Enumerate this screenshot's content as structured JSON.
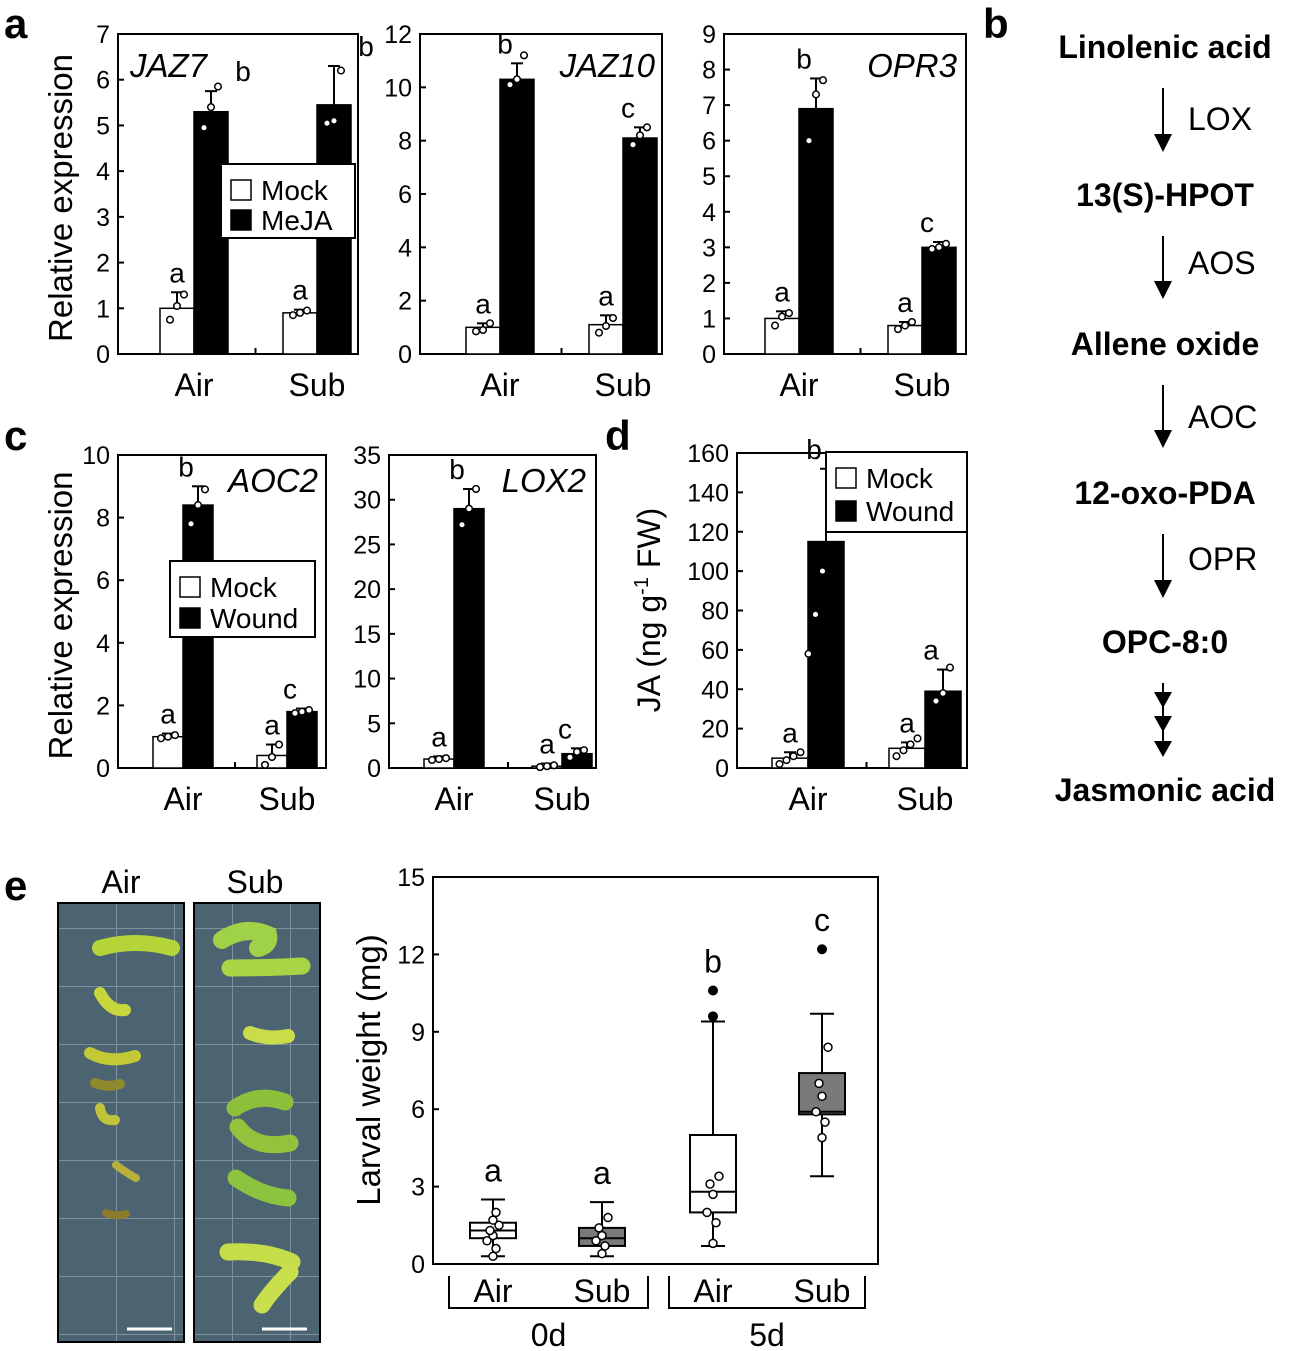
{
  "panels": {
    "a": "a",
    "b": "b",
    "c": "c",
    "d": "d",
    "e": "e"
  },
  "colors": {
    "mock": "#ffffff",
    "treated": "#000000",
    "sub_box": "#7a7a7a",
    "outline": "#000000"
  },
  "chart_data": [
    {
      "id": "jaz7",
      "type": "bar",
      "title": "JAZ7",
      "ylabel": "Relative expression",
      "categories": [
        "Air",
        "Sub"
      ],
      "ylim": [
        0,
        7
      ],
      "yticks": [
        0,
        1,
        2,
        3,
        4,
        5,
        6,
        7
      ],
      "series": [
        {
          "name": "Mock",
          "values": [
            1.0,
            0.9
          ],
          "errors": [
            0.35,
            0.07
          ],
          "letters": [
            "a",
            "a"
          ],
          "points": [
            [
              0.75,
              1.05,
              1.3
            ],
            [
              0.85,
              0.9,
              0.95
            ]
          ]
        },
        {
          "name": "MeJA",
          "values": [
            5.3,
            5.45
          ],
          "errors": [
            0.45,
            0.85
          ],
          "letters": [
            "b",
            "b"
          ],
          "points": [
            [
              4.95,
              5.4,
              5.85
            ],
            [
              5.05,
              5.1,
              6.2
            ]
          ]
        }
      ],
      "legend": [
        "Mock",
        "MeJA"
      ]
    },
    {
      "id": "jaz10",
      "type": "bar",
      "title": "JAZ10",
      "categories": [
        "Air",
        "Sub"
      ],
      "ylim": [
        0,
        12
      ],
      "yticks": [
        0,
        2,
        4,
        6,
        8,
        10,
        12
      ],
      "series": [
        {
          "name": "Mock",
          "values": [
            1.0,
            1.1
          ],
          "errors": [
            0.15,
            0.35
          ],
          "letters": [
            "a",
            "a"
          ],
          "points": [
            [
              0.85,
              0.9,
              1.15
            ],
            [
              0.8,
              1.05,
              1.35
            ]
          ]
        },
        {
          "name": "MeJA",
          "values": [
            10.3,
            8.1
          ],
          "errors": [
            0.6,
            0.4
          ],
          "letters": [
            "b",
            "c"
          ],
          "points": [
            [
              10.1,
              10.3,
              11.2
            ],
            [
              7.85,
              8.2,
              8.5
            ]
          ]
        }
      ]
    },
    {
      "id": "opr3",
      "type": "bar",
      "title": "OPR3",
      "categories": [
        "Air",
        "Sub"
      ],
      "ylim": [
        0,
        9
      ],
      "yticks": [
        0,
        1,
        2,
        3,
        4,
        5,
        6,
        7,
        8,
        9
      ],
      "series": [
        {
          "name": "Mock",
          "values": [
            1.0,
            0.8
          ],
          "errors": [
            0.2,
            0.1
          ],
          "letters": [
            "a",
            "a"
          ],
          "points": [
            [
              0.8,
              1.05,
              1.15
            ],
            [
              0.7,
              0.8,
              0.9
            ]
          ]
        },
        {
          "name": "MeJA",
          "values": [
            6.9,
            3.0
          ],
          "errors": [
            0.85,
            0.15
          ],
          "letters": [
            "b",
            "c"
          ],
          "points": [
            [
              6.0,
              7.3,
              7.7
            ],
            [
              2.95,
              3.0,
              3.1
            ]
          ]
        }
      ]
    },
    {
      "id": "aoc2",
      "type": "bar",
      "title": "AOC2",
      "ylabel": "Relative expression",
      "categories": [
        "Air",
        "Sub"
      ],
      "ylim": [
        0,
        10
      ],
      "yticks": [
        0,
        2,
        4,
        6,
        8,
        10
      ],
      "series": [
        {
          "name": "Mock",
          "values": [
            1.0,
            0.4
          ],
          "errors": [
            0.1,
            0.35
          ],
          "letters": [
            "a",
            "a"
          ],
          "points": [
            [
              0.95,
              1.0,
              1.05
            ],
            [
              0.1,
              0.35,
              0.75
            ]
          ]
        },
        {
          "name": "Wound",
          "values": [
            8.4,
            1.8
          ],
          "errors": [
            0.6,
            0.1
          ],
          "letters": [
            "b",
            "c"
          ],
          "points": [
            [
              7.8,
              8.4,
              8.9
            ],
            [
              1.75,
              1.8,
              1.85
            ]
          ]
        }
      ],
      "legend": [
        "Mock",
        "Wound"
      ]
    },
    {
      "id": "lox2",
      "type": "bar",
      "title": "LOX2",
      "categories": [
        "Air",
        "Sub"
      ],
      "ylim": [
        0,
        35
      ],
      "yticks": [
        0,
        5,
        10,
        15,
        20,
        25,
        30,
        35
      ],
      "series": [
        {
          "name": "Mock",
          "values": [
            1.0,
            0.2
          ],
          "errors": [
            0.3,
            0.3
          ],
          "letters": [
            "a",
            "a"
          ],
          "points": [
            [
              0.9,
              1.0,
              1.1
            ],
            [
              0.1,
              0.2,
              0.3
            ]
          ]
        },
        {
          "name": "Wound",
          "values": [
            29.0,
            1.6
          ],
          "errors": [
            2.2,
            0.6
          ],
          "letters": [
            "b",
            "c"
          ],
          "points": [
            [
              27.2,
              29.0,
              31.2
            ],
            [
              1.2,
              1.8,
              2.0
            ]
          ]
        }
      ]
    },
    {
      "id": "ja",
      "type": "bar",
      "ylabel_parts": [
        "JA (ng g",
        "-1",
        " FW)"
      ],
      "categories": [
        "Air",
        "Sub"
      ],
      "ylim": [
        0,
        160
      ],
      "yticks": [
        0,
        20,
        40,
        60,
        80,
        100,
        120,
        140,
        160
      ],
      "series": [
        {
          "name": "Mock",
          "values": [
            5.0,
            10.0
          ],
          "errors": [
            3.0,
            3.0
          ],
          "letters": [
            "a",
            "a"
          ],
          "points": [
            [
              2,
              4,
              6,
              8
            ],
            [
              6,
              9,
              12,
              15
            ]
          ]
        },
        {
          "name": "Wound",
          "values": [
            115.0,
            39.0
          ],
          "errors": [
            37.0,
            11.0
          ],
          "letters": [
            "b",
            "a"
          ],
          "points": [
            [
              58,
              78,
              100,
              125,
              145,
              153
            ],
            [
              34,
              38,
              51
            ]
          ]
        }
      ],
      "legend": [
        "Mock",
        "Wound"
      ]
    },
    {
      "id": "larval",
      "type": "box",
      "ylabel": "Larval weight (mg)",
      "ylim": [
        0,
        15
      ],
      "yticks": [
        0,
        3,
        6,
        9,
        12,
        15
      ],
      "groups": [
        {
          "label": "Air",
          "day": "0d",
          "q1": 1.0,
          "median": 1.3,
          "q3": 1.6,
          "whisker_low": 0.3,
          "whisker_high": 2.5,
          "outliers": [],
          "points": [
            0.3,
            0.6,
            0.9,
            1.1,
            1.3,
            1.5,
            1.7,
            2.0
          ],
          "letter": "a",
          "fill": "#ffffff"
        },
        {
          "label": "Sub",
          "day": "0d",
          "q1": 0.7,
          "median": 1.0,
          "q3": 1.4,
          "whisker_low": 0.3,
          "whisker_high": 2.4,
          "outliers": [],
          "points": [
            0.4,
            0.7,
            0.9,
            1.1,
            1.4,
            1.8
          ],
          "letter": "a",
          "fill": "#7a7a7a"
        },
        {
          "label": "Air",
          "day": "5d",
          "q1": 2.0,
          "median": 2.8,
          "q3": 5.0,
          "whisker_low": 0.7,
          "whisker_high": 9.4,
          "outliers": [
            9.6,
            10.6
          ],
          "points": [
            0.8,
            1.6,
            2.0,
            2.7,
            3.1,
            3.4
          ],
          "letter": "b",
          "fill": "#ffffff"
        },
        {
          "label": "Sub",
          "day": "5d",
          "q1": 5.8,
          "median": 5.9,
          "q3": 7.4,
          "whisker_low": 3.4,
          "whisker_high": 9.7,
          "outliers": [
            12.2
          ],
          "points": [
            4.9,
            5.5,
            5.9,
            6.5,
            7.0,
            8.4
          ],
          "letter": "c",
          "fill": "#7a7a7a"
        }
      ],
      "days": [
        "0d",
        "5d"
      ]
    }
  ],
  "pathway": {
    "steps": [
      "Linolenic acid",
      "13(S)-HPOT",
      "Allene oxide",
      "12-oxo-PDA",
      "OPC-8:0",
      "Jasmonic acid"
    ],
    "enzymes": [
      "LOX",
      "AOS",
      "AOC",
      "OPR"
    ]
  },
  "photo": {
    "labels": [
      "Air",
      "Sub"
    ]
  }
}
